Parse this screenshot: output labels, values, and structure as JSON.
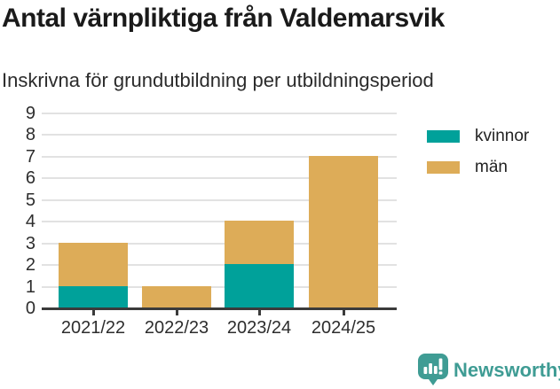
{
  "header": {
    "title": "Antal värnpliktiga från Valdemarsvik",
    "subtitle": "Inskrivna för grundutbildning per utbildningsperiod"
  },
  "chart_data": {
    "type": "bar",
    "stacked": true,
    "title": "Antal värnpliktiga från Valdemarsvik",
    "subtitle": "Inskrivna för grundutbildning per utbildningsperiod",
    "categories": [
      "2021/22",
      "2022/23",
      "2023/24",
      "2024/25"
    ],
    "series": [
      {
        "name": "kvinnor",
        "color": "#00A19A",
        "values": [
          1,
          0,
          2,
          0
        ]
      },
      {
        "name": "män",
        "color": "#DDAC58",
        "values": [
          2,
          1,
          2,
          7
        ]
      }
    ],
    "totals": [
      3,
      1,
      4,
      7
    ],
    "xlabel": "",
    "ylabel": "",
    "ylim": [
      0,
      9
    ],
    "yticks": [
      0,
      1,
      2,
      3,
      4,
      5,
      6,
      7,
      8,
      9
    ],
    "grid": true,
    "legend_position": "right-top"
  },
  "footer": {
    "brand": "Newsworthy"
  },
  "colors": {
    "grid": "#E2E2E2",
    "axis": "#3B3B3B",
    "axis_text": "#2D2D2D",
    "title_text": "#1A1A1A",
    "brand": "#3F9C94"
  }
}
